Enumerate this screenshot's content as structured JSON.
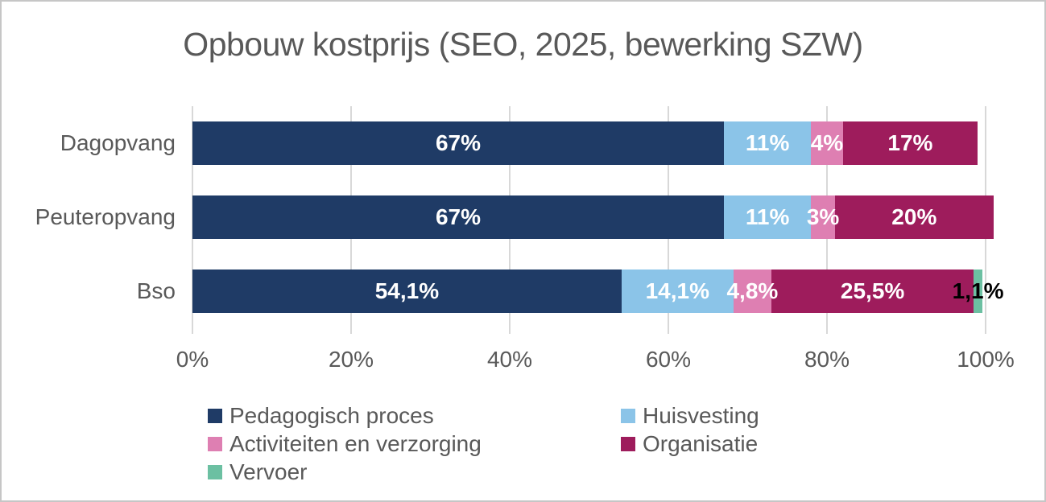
{
  "chart_data": {
    "type": "bar",
    "orientation": "horizontal",
    "stacked": true,
    "title": "Opbouw kostprijs (SEO, 2025, bewerking SZW)",
    "categories": [
      "Dagopvang",
      "Peuteropvang",
      "Bso"
    ],
    "series": [
      {
        "name": "Pedagogisch proces",
        "color": "#1F3B66",
        "values": [
          67,
          67,
          54.1
        ],
        "labels": [
          "67%",
          "67%",
          "54,1%"
        ],
        "label_color": "#ffffff"
      },
      {
        "name": "Huisvesting",
        "color": "#8BC4E8",
        "values": [
          11,
          11,
          14.1
        ],
        "labels": [
          "11%",
          "11%",
          "14,1%"
        ],
        "label_color": "#ffffff"
      },
      {
        "name": "Activiteiten en verzorging",
        "color": "#DE7FB2",
        "values": [
          4,
          3,
          4.8
        ],
        "labels": [
          "4%",
          "3%",
          "4,8%"
        ],
        "label_color": "#ffffff"
      },
      {
        "name": "Organisatie",
        "color": "#9E1C5C",
        "values": [
          17,
          20,
          25.5
        ],
        "labels": [
          "17%",
          "20%",
          "25,5%"
        ],
        "label_color": "#ffffff"
      },
      {
        "name": "Vervoer",
        "color": "#6CC0A2",
        "values": [
          0,
          0,
          1.1
        ],
        "labels": [
          "",
          "",
          "1,1%"
        ],
        "label_color": "#000000"
      }
    ],
    "x_ticks": [
      "0%",
      "20%",
      "40%",
      "60%",
      "80%",
      "100%"
    ],
    "xlim": [
      0,
      100
    ],
    "grid": true,
    "legend_position": "bottom",
    "colors": {
      "text_gray": "#595959",
      "gridline": "#d8d8d8",
      "frame_border": "#c6c6c6"
    }
  }
}
